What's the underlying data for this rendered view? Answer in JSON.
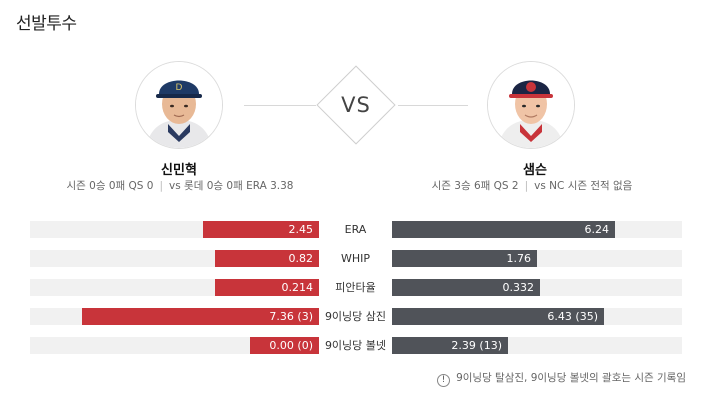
{
  "section_title": "선발투수",
  "vs_label": "VS",
  "left_pitcher": {
    "name": "신민혁",
    "season": "시즌 0승 0패 QS 0",
    "vs_record": "vs 롯데 0승 0패 ERA 3.38",
    "cap_color": "#1f3a66"
  },
  "right_pitcher": {
    "name": "샘슨",
    "season": "시즌 3승 6패 QS 2",
    "vs_record": "vs NC 시즌 전적 없음",
    "cap_color": "#1b2544"
  },
  "colors": {
    "left_bar": "#c8343a",
    "right_bar": "#505359"
  },
  "stats": [
    {
      "label": "ERA",
      "left": "2.45",
      "right": "6.24",
      "left_fill": 0.4,
      "right_fill": 0.77
    },
    {
      "label": "WHIP",
      "left": "0.82",
      "right": "1.76",
      "left_fill": 0.36,
      "right_fill": 0.5
    },
    {
      "label": "피안타율",
      "left": "0.214",
      "right": "0.332",
      "left_fill": 0.36,
      "right_fill": 0.51
    },
    {
      "label": "9이닝당 삼진",
      "left": "7.36 (3)",
      "right": "6.43 (35)",
      "left_fill": 0.82,
      "right_fill": 0.73
    },
    {
      "label": "9이닝당 볼넷",
      "left": "0.00 (0)",
      "right": "2.39 (13)",
      "left_fill": 0.24,
      "right_fill": 0.4
    }
  ],
  "footnote": "9이닝당 탈삼진, 9이닝당 볼넷의 괄호는 시즌 기록임",
  "footnote_icon": "info-icon"
}
